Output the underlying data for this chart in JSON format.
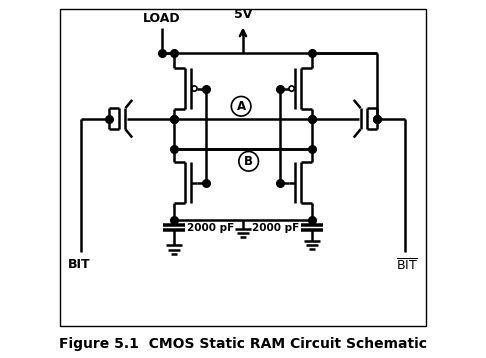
{
  "title": "Figure 5.1  CMOS Static RAM Circuit Schematic",
  "title_fontsize": 10,
  "title_fontweight": "bold",
  "background_color": "#ffffff",
  "line_color": "#000000",
  "line_width": 1.8,
  "label_LOAD": "LOAD",
  "label_5V": "5V",
  "label_BIT_left": "BIT",
  "label_BIT_right": "BIT",
  "label_A": "A",
  "label_B": "B",
  "label_cap_left": "2000 pF",
  "label_cap_right": "2000 pF",
  "figsize": [
    4.86,
    3.58
  ],
  "dpi": 100
}
